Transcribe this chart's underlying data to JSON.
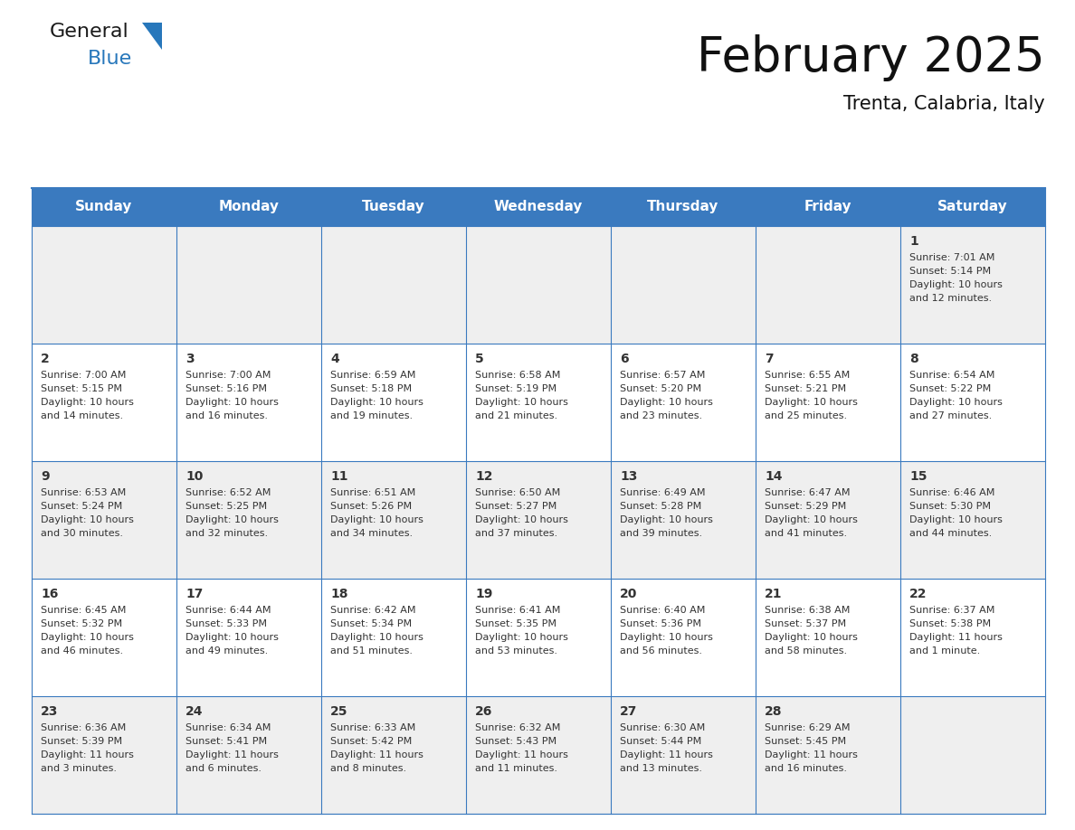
{
  "title": "February 2025",
  "subtitle": "Trenta, Calabria, Italy",
  "header_bg": "#3a7abf",
  "header_text": "#ffffff",
  "row_bg_odd": "#efefef",
  "row_bg_even": "#ffffff",
  "border_color": "#3a7abf",
  "day_headers": [
    "Sunday",
    "Monday",
    "Tuesday",
    "Wednesday",
    "Thursday",
    "Friday",
    "Saturday"
  ],
  "days": [
    {
      "day": 1,
      "col": 6,
      "row": 0,
      "sunrise": "7:01 AM",
      "sunset": "5:14 PM",
      "daylight": "10 hours",
      "daylight2": "and 12 minutes."
    },
    {
      "day": 2,
      "col": 0,
      "row": 1,
      "sunrise": "7:00 AM",
      "sunset": "5:15 PM",
      "daylight": "10 hours",
      "daylight2": "and 14 minutes."
    },
    {
      "day": 3,
      "col": 1,
      "row": 1,
      "sunrise": "7:00 AM",
      "sunset": "5:16 PM",
      "daylight": "10 hours",
      "daylight2": "and 16 minutes."
    },
    {
      "day": 4,
      "col": 2,
      "row": 1,
      "sunrise": "6:59 AM",
      "sunset": "5:18 PM",
      "daylight": "10 hours",
      "daylight2": "and 19 minutes."
    },
    {
      "day": 5,
      "col": 3,
      "row": 1,
      "sunrise": "6:58 AM",
      "sunset": "5:19 PM",
      "daylight": "10 hours",
      "daylight2": "and 21 minutes."
    },
    {
      "day": 6,
      "col": 4,
      "row": 1,
      "sunrise": "6:57 AM",
      "sunset": "5:20 PM",
      "daylight": "10 hours",
      "daylight2": "and 23 minutes."
    },
    {
      "day": 7,
      "col": 5,
      "row": 1,
      "sunrise": "6:55 AM",
      "sunset": "5:21 PM",
      "daylight": "10 hours",
      "daylight2": "and 25 minutes."
    },
    {
      "day": 8,
      "col": 6,
      "row": 1,
      "sunrise": "6:54 AM",
      "sunset": "5:22 PM",
      "daylight": "10 hours",
      "daylight2": "and 27 minutes."
    },
    {
      "day": 9,
      "col": 0,
      "row": 2,
      "sunrise": "6:53 AM",
      "sunset": "5:24 PM",
      "daylight": "10 hours",
      "daylight2": "and 30 minutes."
    },
    {
      "day": 10,
      "col": 1,
      "row": 2,
      "sunrise": "6:52 AM",
      "sunset": "5:25 PM",
      "daylight": "10 hours",
      "daylight2": "and 32 minutes."
    },
    {
      "day": 11,
      "col": 2,
      "row": 2,
      "sunrise": "6:51 AM",
      "sunset": "5:26 PM",
      "daylight": "10 hours",
      "daylight2": "and 34 minutes."
    },
    {
      "day": 12,
      "col": 3,
      "row": 2,
      "sunrise": "6:50 AM",
      "sunset": "5:27 PM",
      "daylight": "10 hours",
      "daylight2": "and 37 minutes."
    },
    {
      "day": 13,
      "col": 4,
      "row": 2,
      "sunrise": "6:49 AM",
      "sunset": "5:28 PM",
      "daylight": "10 hours",
      "daylight2": "and 39 minutes."
    },
    {
      "day": 14,
      "col": 5,
      "row": 2,
      "sunrise": "6:47 AM",
      "sunset": "5:29 PM",
      "daylight": "10 hours",
      "daylight2": "and 41 minutes."
    },
    {
      "day": 15,
      "col": 6,
      "row": 2,
      "sunrise": "6:46 AM",
      "sunset": "5:30 PM",
      "daylight": "10 hours",
      "daylight2": "and 44 minutes."
    },
    {
      "day": 16,
      "col": 0,
      "row": 3,
      "sunrise": "6:45 AM",
      "sunset": "5:32 PM",
      "daylight": "10 hours",
      "daylight2": "and 46 minutes."
    },
    {
      "day": 17,
      "col": 1,
      "row": 3,
      "sunrise": "6:44 AM",
      "sunset": "5:33 PM",
      "daylight": "10 hours",
      "daylight2": "and 49 minutes."
    },
    {
      "day": 18,
      "col": 2,
      "row": 3,
      "sunrise": "6:42 AM",
      "sunset": "5:34 PM",
      "daylight": "10 hours",
      "daylight2": "and 51 minutes."
    },
    {
      "day": 19,
      "col": 3,
      "row": 3,
      "sunrise": "6:41 AM",
      "sunset": "5:35 PM",
      "daylight": "10 hours",
      "daylight2": "and 53 minutes."
    },
    {
      "day": 20,
      "col": 4,
      "row": 3,
      "sunrise": "6:40 AM",
      "sunset": "5:36 PM",
      "daylight": "10 hours",
      "daylight2": "and 56 minutes."
    },
    {
      "day": 21,
      "col": 5,
      "row": 3,
      "sunrise": "6:38 AM",
      "sunset": "5:37 PM",
      "daylight": "10 hours",
      "daylight2": "and 58 minutes."
    },
    {
      "day": 22,
      "col": 6,
      "row": 3,
      "sunrise": "6:37 AM",
      "sunset": "5:38 PM",
      "daylight": "11 hours",
      "daylight2": "and 1 minute."
    },
    {
      "day": 23,
      "col": 0,
      "row": 4,
      "sunrise": "6:36 AM",
      "sunset": "5:39 PM",
      "daylight": "11 hours",
      "daylight2": "and 3 minutes."
    },
    {
      "day": 24,
      "col": 1,
      "row": 4,
      "sunrise": "6:34 AM",
      "sunset": "5:41 PM",
      "daylight": "11 hours",
      "daylight2": "and 6 minutes."
    },
    {
      "day": 25,
      "col": 2,
      "row": 4,
      "sunrise": "6:33 AM",
      "sunset": "5:42 PM",
      "daylight": "11 hours",
      "daylight2": "and 8 minutes."
    },
    {
      "day": 26,
      "col": 3,
      "row": 4,
      "sunrise": "6:32 AM",
      "sunset": "5:43 PM",
      "daylight": "11 hours",
      "daylight2": "and 11 minutes."
    },
    {
      "day": 27,
      "col": 4,
      "row": 4,
      "sunrise": "6:30 AM",
      "sunset": "5:44 PM",
      "daylight": "11 hours",
      "daylight2": "and 13 minutes."
    },
    {
      "day": 28,
      "col": 5,
      "row": 4,
      "sunrise": "6:29 AM",
      "sunset": "5:45 PM",
      "daylight": "11 hours",
      "daylight2": "and 16 minutes."
    }
  ],
  "num_rows": 5,
  "num_cols": 7,
  "logo_color_general": "#1a1a1a",
  "logo_color_blue": "#2777bb",
  "title_fontsize": 38,
  "subtitle_fontsize": 15,
  "header_fontsize": 11,
  "day_num_fontsize": 10,
  "cell_text_fontsize": 8.0
}
